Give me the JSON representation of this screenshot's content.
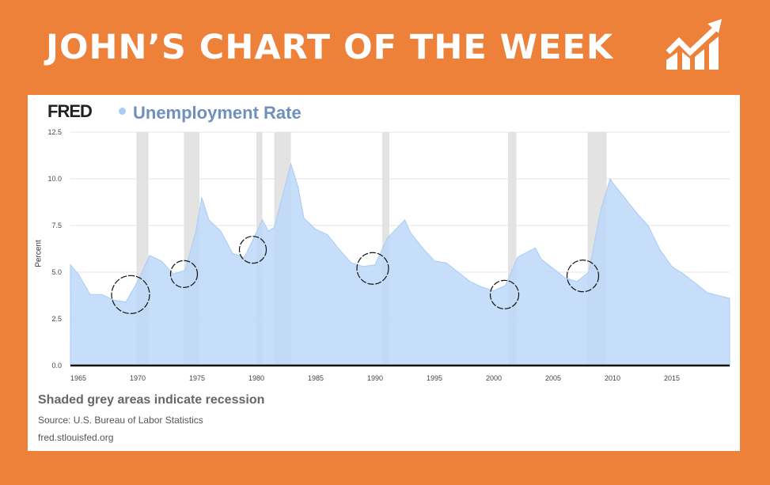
{
  "header": {
    "title": "JOHN’S CHART OF THE WEEK",
    "icon": "growth-chart-icon"
  },
  "brand": {
    "logo": "FRED",
    "accent": "#ed8139"
  },
  "footer": {
    "note": "Shaded grey areas indicate recession",
    "source": "Source: U.S. Bureau of Labor Statistics",
    "url": "fred.stlouisfed.org"
  },
  "chart_data": {
    "type": "area",
    "title": "Unemployment Rate",
    "xlabel": "",
    "ylabel": "Percent",
    "xlim": [
      1964.33,
      2019.87
    ],
    "ylim": [
      0,
      12.5
    ],
    "yticks": [
      "0.0",
      "2.5",
      "5.0",
      "7.5",
      "10.0",
      "12.5"
    ],
    "xticks": [
      "1965",
      "1970",
      "1975",
      "1980",
      "1985",
      "1990",
      "1995",
      "2000",
      "2005",
      "2010",
      "2015"
    ],
    "grid": true,
    "series": [
      {
        "name": "Unemployment Rate",
        "color": "#bcd8f8",
        "x": [
          1964.33,
          1965,
          1966,
          1967,
          1968,
          1969,
          1970,
          1971,
          1972,
          1973,
          1974,
          1974.9,
          1975.4,
          1976,
          1977,
          1978,
          1979,
          1980.5,
          1981,
          1981.5,
          1982,
          1982.9,
          1983.5,
          1984,
          1985,
          1986,
          1987,
          1988,
          1989,
          1990,
          1991,
          1992.5,
          1993,
          1994,
          1995,
          1996,
          1997,
          1998,
          1999,
          2000,
          2001,
          2002,
          2003.5,
          2004,
          2005,
          2006,
          2007,
          2008,
          2009,
          2009.8,
          2010,
          2011,
          2012,
          2013,
          2014,
          2015,
          2016,
          2017,
          2018,
          2019.87
        ],
        "y": [
          5.4,
          4.9,
          3.8,
          3.8,
          3.5,
          3.4,
          4.5,
          5.9,
          5.6,
          4.9,
          5.1,
          7.2,
          9.0,
          7.8,
          7.2,
          6.0,
          5.8,
          7.8,
          7.2,
          7.4,
          8.6,
          10.8,
          9.6,
          7.9,
          7.3,
          7.0,
          6.2,
          5.5,
          5.3,
          5.4,
          6.8,
          7.8,
          7.1,
          6.3,
          5.6,
          5.5,
          5.0,
          4.5,
          4.2,
          4.0,
          4.3,
          5.8,
          6.3,
          5.7,
          5.2,
          4.7,
          4.5,
          5.0,
          8.3,
          10.0,
          9.8,
          9.0,
          8.2,
          7.5,
          6.2,
          5.3,
          4.9,
          4.4,
          3.9,
          3.6
        ]
      }
    ],
    "recessions": [
      [
        1969.9,
        1970.9
      ],
      [
        1973.9,
        1975.2
      ],
      [
        1980.0,
        1980.5
      ],
      [
        1981.5,
        1982.9
      ],
      [
        1990.6,
        1991.2
      ],
      [
        2001.2,
        2001.9
      ],
      [
        2007.9,
        2009.5
      ]
    ],
    "annotations": [
      {
        "type": "circle",
        "x": 1969.4,
        "y": 3.8
      },
      {
        "type": "circle",
        "x": 1973.9,
        "y": 4.9
      },
      {
        "type": "circle",
        "x": 1979.7,
        "y": 6.2
      },
      {
        "type": "circle",
        "x": 1989.8,
        "y": 5.2
      },
      {
        "type": "circle",
        "x": 2000.9,
        "y": 3.8
      },
      {
        "type": "circle",
        "x": 2007.5,
        "y": 4.8
      }
    ]
  }
}
